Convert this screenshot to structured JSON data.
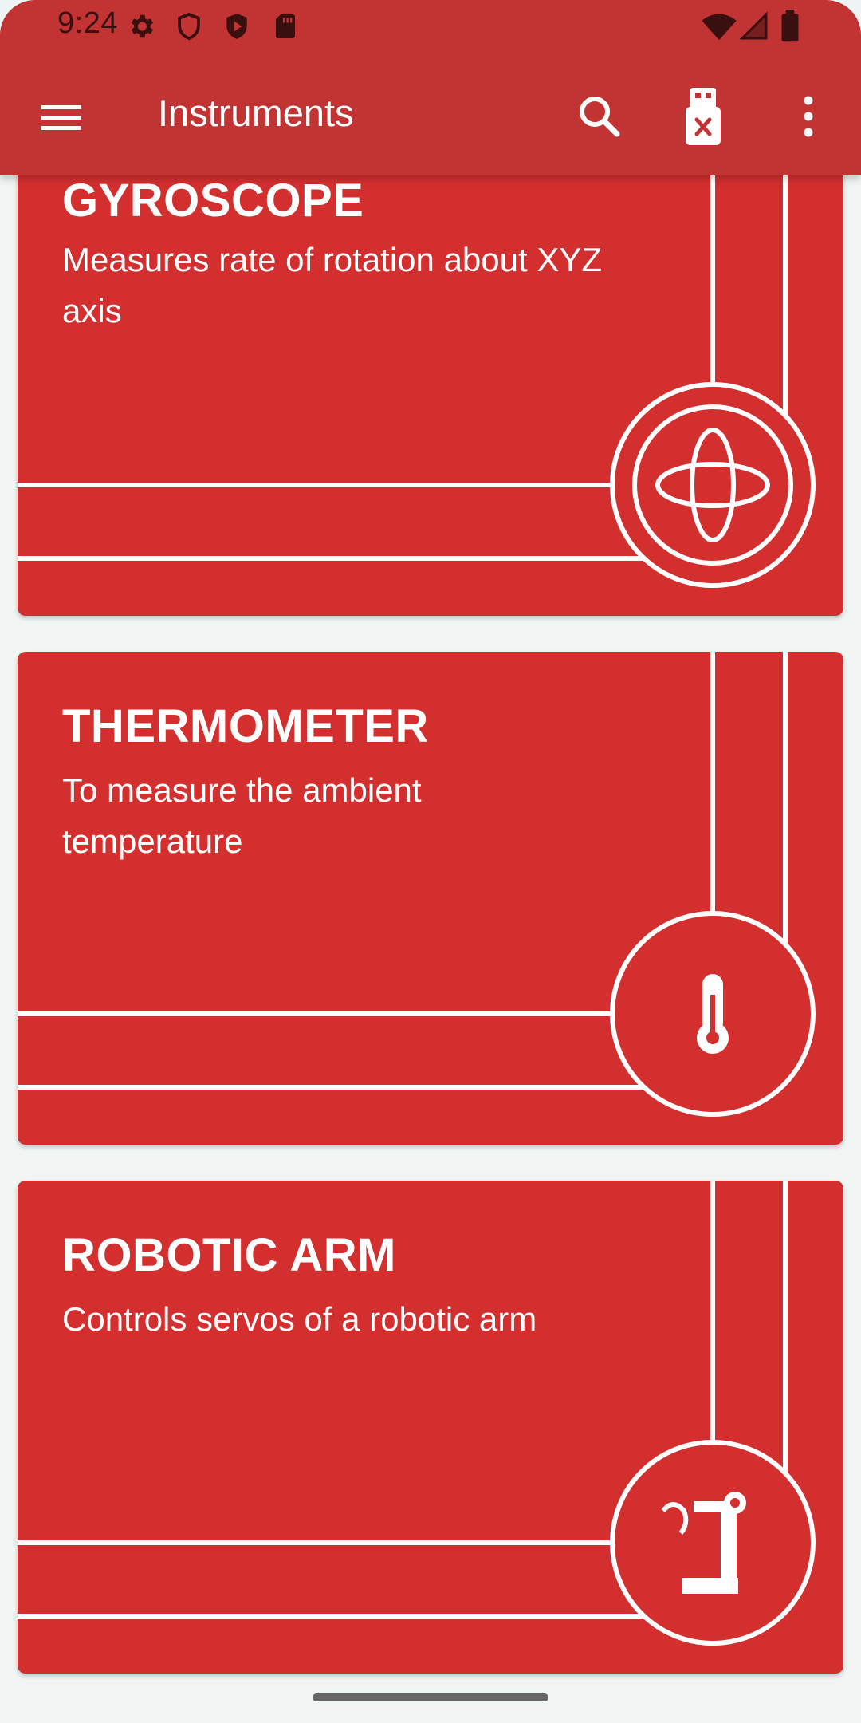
{
  "status_bar": {
    "time": "9:24",
    "left_icons": [
      "gear-icon",
      "shield-icon",
      "play-shield-icon",
      "sd-card-icon"
    ],
    "right_icons": [
      "wifi-icon",
      "signal-icon",
      "battery-icon"
    ]
  },
  "toolbar": {
    "title": "Instruments",
    "actions": [
      "menu-icon",
      "search-icon",
      "usb-disconnected-icon",
      "more-vert-icon"
    ]
  },
  "cards": [
    {
      "title": "GYROSCOPE",
      "description": "Measures rate of rotation about XYZ axis",
      "icon": "gyroscope-icon"
    },
    {
      "title": "THERMOMETER",
      "description": "To measure the ambient temperature",
      "icon": "thermometer-icon"
    },
    {
      "title": "ROBOTIC ARM",
      "description": "Controls servos of a robotic arm",
      "icon": "robotic-arm-icon"
    }
  ],
  "colors": {
    "appbar": "#c23434",
    "card": "#d32f2f",
    "background": "#f1f6f5",
    "text": "#ffffff"
  }
}
